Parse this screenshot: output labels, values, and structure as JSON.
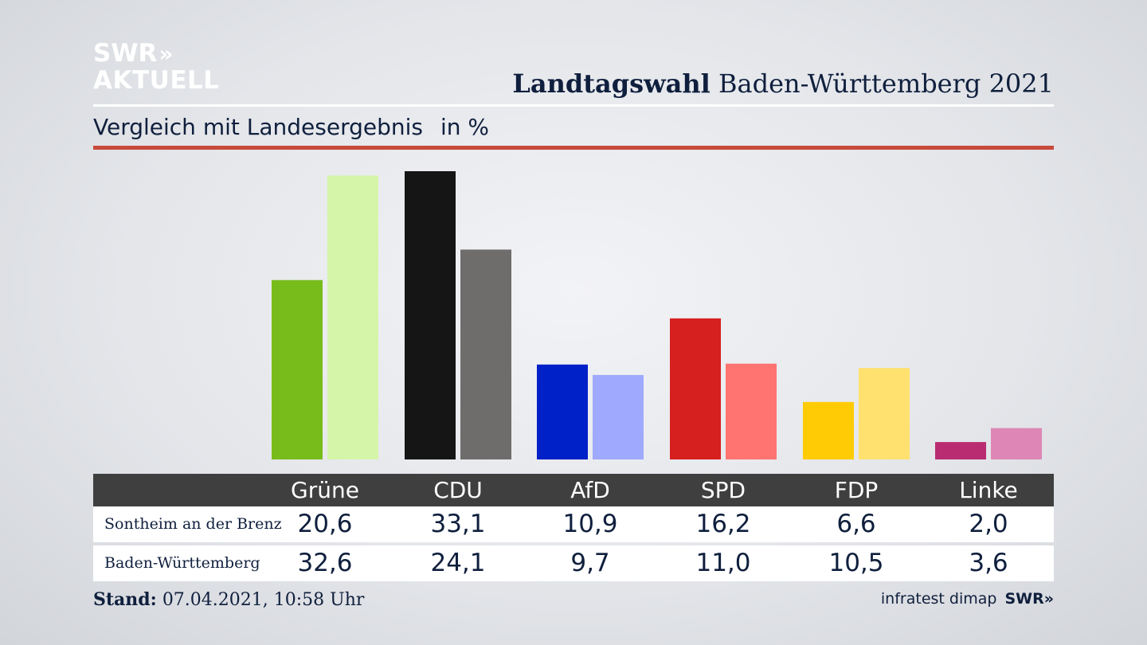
{
  "logo": {
    "line1": "SWR",
    "chevrons": "»",
    "line2": "AKTUELL"
  },
  "header": {
    "title_bold": "Landtagswahl",
    "title_rest": "Baden-Württemberg 2021"
  },
  "subtitle": {
    "text": "Vergleich mit Landesergebnis",
    "unit": "in %"
  },
  "chart_data": {
    "type": "bar",
    "title": "Landtagswahl Baden-Württemberg 2021",
    "subtitle": "Vergleich mit Landesergebnis",
    "unit": "in %",
    "categories": [
      "Grüne",
      "CDU",
      "AfD",
      "SPD",
      "FDP",
      "Linke"
    ],
    "series": [
      {
        "name": "Sontheim an der Brenz",
        "values": [
          20.6,
          33.1,
          10.9,
          16.2,
          6.6,
          2.0
        ],
        "colors": [
          "#78bc1c",
          "#151515",
          "#0020c8",
          "#d61f1f",
          "#ffcb05",
          "#b92c72"
        ]
      },
      {
        "name": "Baden-Württemberg",
        "values": [
          32.6,
          24.1,
          9.7,
          11.0,
          10.5,
          3.6
        ],
        "colors": [
          "#d5f5a8",
          "#6e6d6b",
          "#9fa9fd",
          "#ff7470",
          "#ffe16f",
          "#de87b6"
        ]
      }
    ],
    "ylim": [
      0,
      33.1
    ],
    "grid": false,
    "legend": "table-below"
  },
  "table": {
    "headers": [
      "Grüne",
      "CDU",
      "AfD",
      "SPD",
      "FDP",
      "Linke"
    ],
    "rows": [
      {
        "label": "Sontheim an der Brenz",
        "values": [
          "20,6",
          "33,1",
          "10,9",
          "16,2",
          "6,6",
          "2,0"
        ]
      },
      {
        "label": "Baden-Württemberg",
        "values": [
          "32,6",
          "24,1",
          "9,7",
          "11,0",
          "10,5",
          "3,6"
        ]
      }
    ]
  },
  "footer": {
    "stand_label": "Stand:",
    "stand_value": "07.04.2021, 10:58 Uhr",
    "source": "infratest dimap",
    "source_logo": "SWR»"
  }
}
